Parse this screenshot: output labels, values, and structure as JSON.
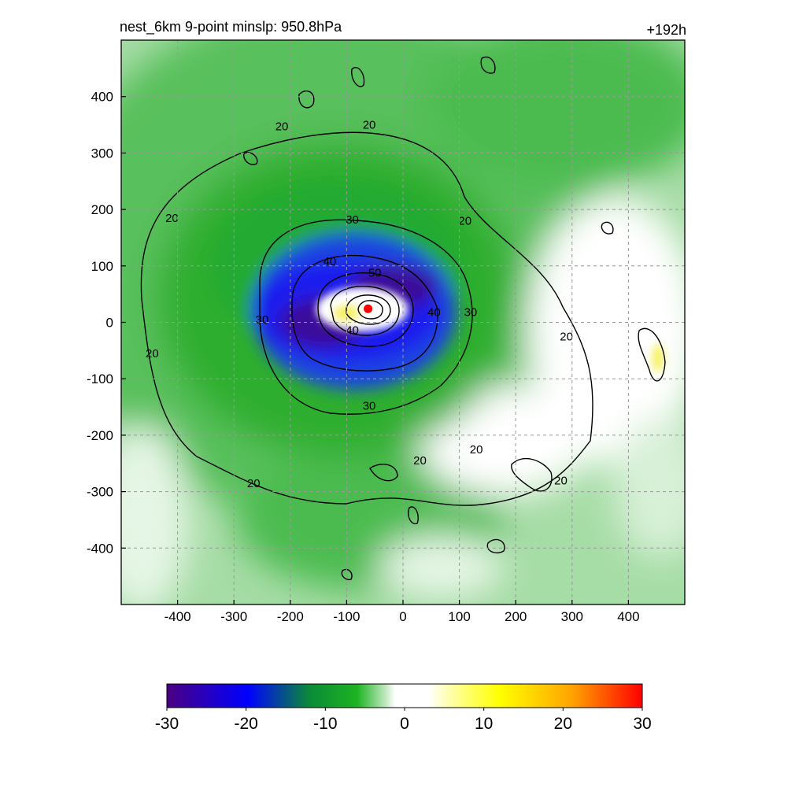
{
  "chart_data": {
    "type": "heatmap",
    "title_left": "nest_6km  9-point minslp: 950.8hPa",
    "title_right": "+192h",
    "xlim": [
      -500,
      500
    ],
    "ylim": [
      -500,
      500
    ],
    "xticks": [
      -400,
      -300,
      -200,
      -100,
      0,
      100,
      200,
      300,
      400
    ],
    "yticks": [
      400,
      300,
      200,
      100,
      0,
      -100,
      -200,
      -300,
      -400
    ],
    "grid": true,
    "grid_style": "dashed",
    "storm_center": {
      "x": -62,
      "y": 24,
      "marker": "red-dot"
    },
    "colorbar": {
      "min": -30,
      "max": 30,
      "ticks": [
        -30,
        -20,
        -10,
        0,
        10,
        20,
        30
      ],
      "orientation": "horizontal",
      "placement": "bottom"
    },
    "contour_labels": [
      {
        "text": "20",
        "x": -215,
        "y": 347
      },
      {
        "text": "20",
        "x": -60,
        "y": 350
      },
      {
        "text": "20",
        "x": -410,
        "y": 185
      },
      {
        "text": "20",
        "x": 110,
        "y": 180
      },
      {
        "text": "20",
        "x": -445,
        "y": -55
      },
      {
        "text": "20",
        "x": 290,
        "y": -25
      },
      {
        "text": "20",
        "x": 30,
        "y": -245
      },
      {
        "text": "20",
        "x": 130,
        "y": -225
      },
      {
        "text": "20",
        "x": 280,
        "y": -280
      },
      {
        "text": "20",
        "x": -265,
        "y": -285
      },
      {
        "text": "30",
        "x": -90,
        "y": 182
      },
      {
        "text": "30",
        "x": 120,
        "y": 18
      },
      {
        "text": "30",
        "x": -250,
        "y": 5
      },
      {
        "text": "30",
        "x": -60,
        "y": -148
      },
      {
        "text": "40",
        "x": -130,
        "y": 108
      },
      {
        "text": "40",
        "x": 55,
        "y": 18
      },
      {
        "text": "50",
        "x": -50,
        "y": 88
      },
      {
        "text": "40",
        "x": -90,
        "y": -14
      }
    ]
  },
  "colors": {
    "colorbar_stops": [
      "#4b0082",
      "#0000ff",
      "#0b8b38",
      "#1db322",
      "#bfe8bf",
      "#ffffff",
      "#ffffff",
      "#ffff80",
      "#ffff00",
      "#ffa500",
      "#ff0000"
    ],
    "storm_center": "#ff0000",
    "contour": "#000000",
    "grid": "#999999"
  }
}
